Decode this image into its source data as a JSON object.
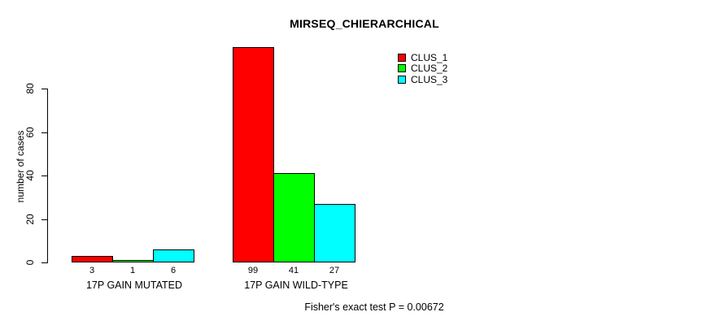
{
  "chart_data": {
    "type": "bar",
    "title": "MIRSEQ_CHIERARCHICAL",
    "ylabel": "number of cases",
    "xlabel": "",
    "categories": [
      "17P GAIN MUTATED",
      "17P GAIN WILD-TYPE"
    ],
    "series": [
      {
        "name": "CLUS_1",
        "color": "#ff0000",
        "values": [
          3,
          99
        ]
      },
      {
        "name": "CLUS_2",
        "color": "#00ff00",
        "values": [
          1,
          41
        ]
      },
      {
        "name": "CLUS_3",
        "color": "#00ffff",
        "values": [
          6,
          27
        ]
      }
    ],
    "yticks": [
      0,
      20,
      40,
      60,
      80
    ],
    "ylim": [
      0,
      99
    ],
    "grid": false,
    "value_labels_shown": true,
    "legend_position": "top-right",
    "annotation": "Fisher's exact test P = 0.00672"
  },
  "colors": {
    "background": "#ffffff",
    "axis": "#000000",
    "bar_border": "#000000"
  }
}
